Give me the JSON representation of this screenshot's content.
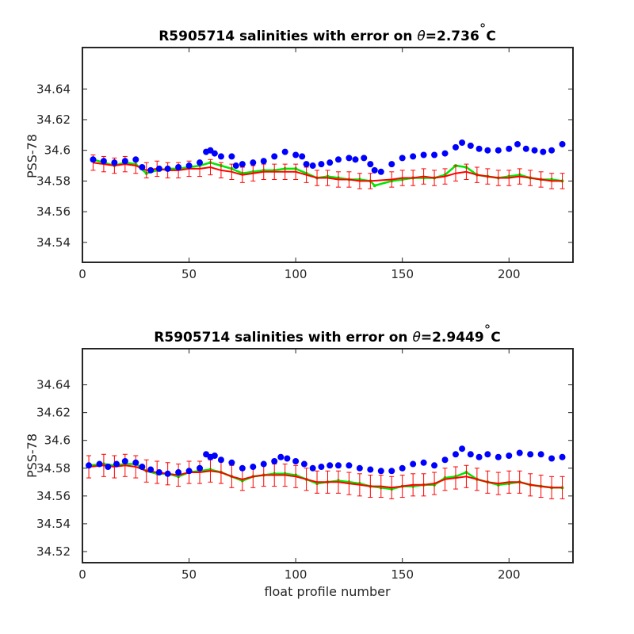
{
  "chart_data": [
    {
      "type": "scatter",
      "title": "R5905714 salinities with error on θ=2.736°C",
      "title_parts": {
        "prefix": "R5905714 salinities with error on ",
        "symbol": "θ",
        "value": "=2.736",
        "degree": "°",
        "unit": "C"
      },
      "xlabel": "",
      "ylabel": "PSS-78",
      "xlim": [
        0,
        230
      ],
      "ylim": [
        34.527,
        34.667
      ],
      "xticks": [
        0,
        50,
        100,
        150,
        200
      ],
      "yticks": [
        34.54,
        34.56,
        34.58,
        34.6,
        34.62,
        34.64
      ],
      "ytick_labels": [
        "34.54",
        "34.56",
        "34.58",
        "34.6",
        "34.62",
        "34.64"
      ],
      "grid": false,
      "series": [
        {
          "style": "blue-dots",
          "color": "#0000ff",
          "x": [
            5,
            10,
            15,
            20,
            25,
            28,
            32,
            36,
            40,
            45,
            50,
            55,
            58,
            60,
            62,
            65,
            70,
            72,
            75,
            80,
            85,
            90,
            95,
            100,
            103,
            105,
            108,
            112,
            116,
            120,
            125,
            128,
            132,
            135,
            137,
            140,
            145,
            150,
            155,
            160,
            165,
            170,
            175,
            178,
            182,
            186,
            190,
            195,
            200,
            204,
            208,
            212,
            216,
            220,
            225
          ],
          "y": [
            34.594,
            34.593,
            34.592,
            34.593,
            34.594,
            34.589,
            34.587,
            34.588,
            34.588,
            34.589,
            34.59,
            34.592,
            34.599,
            34.6,
            34.598,
            34.596,
            34.596,
            34.59,
            34.591,
            34.592,
            34.593,
            34.596,
            34.599,
            34.597,
            34.596,
            34.591,
            34.59,
            34.591,
            34.592,
            34.594,
            34.595,
            34.594,
            34.595,
            34.591,
            34.587,
            34.586,
            34.591,
            34.595,
            34.596,
            34.597,
            34.597,
            34.598,
            34.602,
            34.605,
            34.603,
            34.601,
            34.6,
            34.6,
            34.601,
            34.604,
            34.601,
            34.6,
            34.599,
            34.6,
            34.604
          ]
        },
        {
          "style": "green-line",
          "color": "#00e600",
          "x": [
            5,
            10,
            15,
            20,
            25,
            30,
            35,
            40,
            45,
            50,
            55,
            60,
            65,
            70,
            75,
            80,
            85,
            90,
            95,
            100,
            105,
            110,
            115,
            120,
            125,
            130,
            135,
            137,
            145,
            150,
            155,
            160,
            165,
            170,
            175,
            180,
            185,
            190,
            195,
            200,
            205,
            210,
            215,
            220,
            225
          ],
          "y": [
            34.594,
            34.592,
            34.59,
            34.592,
            34.591,
            34.585,
            34.587,
            34.588,
            34.588,
            34.589,
            34.59,
            34.592,
            34.59,
            34.588,
            34.585,
            34.586,
            34.587,
            34.587,
            34.588,
            34.588,
            34.585,
            34.582,
            34.583,
            34.582,
            34.581,
            34.581,
            34.58,
            34.577,
            34.58,
            34.581,
            34.582,
            34.582,
            34.582,
            34.584,
            34.59,
            34.589,
            34.584,
            34.583,
            34.582,
            34.583,
            34.584,
            34.582,
            34.581,
            34.581,
            34.58
          ]
        },
        {
          "style": "red-errorbars",
          "color": "#ff0000",
          "error": 0.005,
          "x": [
            5,
            10,
            15,
            20,
            25,
            30,
            35,
            40,
            45,
            50,
            55,
            60,
            65,
            70,
            75,
            80,
            85,
            90,
            95,
            100,
            105,
            110,
            115,
            120,
            125,
            130,
            135,
            145,
            150,
            155,
            160,
            165,
            170,
            175,
            180,
            185,
            190,
            195,
            200,
            205,
            210,
            215,
            220,
            225
          ],
          "y": [
            34.592,
            34.591,
            34.59,
            34.591,
            34.59,
            34.587,
            34.588,
            34.587,
            34.587,
            34.588,
            34.588,
            34.589,
            34.587,
            34.586,
            34.584,
            34.585,
            34.586,
            34.586,
            34.586,
            34.586,
            34.584,
            34.582,
            34.582,
            34.581,
            34.581,
            34.58,
            34.58,
            34.581,
            34.582,
            34.582,
            34.583,
            34.582,
            34.583,
            34.585,
            34.586,
            34.584,
            34.583,
            34.582,
            34.582,
            34.583,
            34.582,
            34.581,
            34.58,
            34.58
          ]
        }
      ]
    },
    {
      "type": "scatter",
      "title": "R5905714 salinities with error on θ=2.9449°C",
      "title_parts": {
        "prefix": "R5905714 salinities with error on ",
        "symbol": "θ",
        "value": "=2.9449",
        "degree": "°",
        "unit": "C"
      },
      "xlabel": "float profile number",
      "ylabel": "PSS-78",
      "xlim": [
        0,
        230
      ],
      "ylim": [
        34.512,
        34.666
      ],
      "xticks": [
        0,
        50,
        100,
        150,
        200
      ],
      "yticks": [
        34.52,
        34.54,
        34.56,
        34.58,
        34.6,
        34.62,
        34.64
      ],
      "ytick_labels": [
        "34.52",
        "34.54",
        "34.56",
        "34.58",
        "34.6",
        "34.62",
        "34.64"
      ],
      "grid": false,
      "series": [
        {
          "style": "blue-dots",
          "color": "#0000ff",
          "x": [
            3,
            8,
            12,
            16,
            20,
            25,
            28,
            32,
            36,
            40,
            45,
            50,
            55,
            58,
            60,
            62,
            65,
            70,
            75,
            80,
            85,
            90,
            93,
            96,
            100,
            104,
            108,
            112,
            116,
            120,
            125,
            130,
            135,
            140,
            145,
            150,
            155,
            160,
            165,
            170,
            175,
            178,
            182,
            186,
            190,
            195,
            200,
            205,
            210,
            215,
            220,
            225
          ],
          "y": [
            34.582,
            34.583,
            34.581,
            34.583,
            34.585,
            34.584,
            34.581,
            34.579,
            34.577,
            34.576,
            34.577,
            34.578,
            34.58,
            34.59,
            34.588,
            34.589,
            34.586,
            34.584,
            34.58,
            34.581,
            34.583,
            34.585,
            34.588,
            34.587,
            34.585,
            34.583,
            34.58,
            34.581,
            34.582,
            34.582,
            34.582,
            34.58,
            34.579,
            34.578,
            34.578,
            34.58,
            34.583,
            34.584,
            34.582,
            34.586,
            34.59,
            34.594,
            34.59,
            34.588,
            34.59,
            34.588,
            34.589,
            34.591,
            34.59,
            34.59,
            34.587,
            34.588
          ]
        },
        {
          "style": "green-line",
          "color": "#00e600",
          "x": [
            3,
            10,
            15,
            20,
            25,
            30,
            35,
            40,
            45,
            50,
            55,
            60,
            65,
            70,
            75,
            80,
            85,
            90,
            95,
            100,
            105,
            110,
            115,
            120,
            125,
            130,
            135,
            140,
            145,
            150,
            155,
            160,
            165,
            170,
            175,
            180,
            185,
            190,
            195,
            200,
            205,
            210,
            215,
            220,
            225
          ],
          "y": [
            34.582,
            34.583,
            34.582,
            34.583,
            34.583,
            34.578,
            34.576,
            34.576,
            34.574,
            34.577,
            34.578,
            34.579,
            34.577,
            34.574,
            34.571,
            34.574,
            34.575,
            34.576,
            34.576,
            34.575,
            34.572,
            34.569,
            34.57,
            34.571,
            34.57,
            34.569,
            34.567,
            34.566,
            34.565,
            34.567,
            34.567,
            34.568,
            34.568,
            34.573,
            34.574,
            34.577,
            34.572,
            34.57,
            34.568,
            34.569,
            34.57,
            34.568,
            34.567,
            34.566,
            34.566
          ]
        },
        {
          "style": "red-errorbars",
          "color": "#ff0000",
          "error": 0.008,
          "x": [
            3,
            10,
            15,
            20,
            25,
            30,
            35,
            40,
            45,
            50,
            55,
            60,
            65,
            70,
            75,
            80,
            85,
            90,
            95,
            100,
            105,
            110,
            115,
            120,
            125,
            130,
            135,
            140,
            145,
            150,
            155,
            160,
            165,
            170,
            175,
            180,
            185,
            190,
            195,
            200,
            205,
            210,
            215,
            220,
            225
          ],
          "y": [
            34.581,
            34.582,
            34.581,
            34.582,
            34.581,
            34.578,
            34.577,
            34.576,
            34.575,
            34.577,
            34.577,
            34.578,
            34.577,
            34.574,
            34.572,
            34.574,
            34.575,
            34.575,
            34.575,
            34.574,
            34.572,
            34.57,
            34.57,
            34.57,
            34.569,
            34.568,
            34.567,
            34.567,
            34.566,
            34.567,
            34.568,
            34.568,
            34.569,
            34.572,
            34.573,
            34.574,
            34.572,
            34.57,
            34.569,
            34.57,
            34.57,
            34.568,
            34.567,
            34.566,
            34.566
          ]
        }
      ]
    }
  ]
}
